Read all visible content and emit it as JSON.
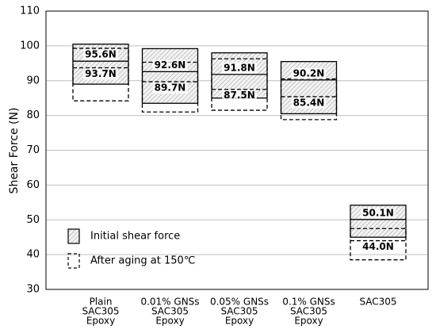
{
  "chart_data": {
    "type": "box",
    "y_label": "Shear Force (N)",
    "categories": [
      [
        "Plain",
        "SAC305",
        "Epoxy"
      ],
      [
        "0.01% GNSs",
        "SAC305",
        "Epoxy"
      ],
      [
        "0.05% GNSs",
        "SAC305",
        "Epoxy"
      ],
      [
        "0.1% GNSs",
        "SAC305",
        "Epoxy"
      ],
      [
        "SAC305"
      ]
    ],
    "ylim": [
      30,
      110
    ],
    "yticks": [
      30,
      40,
      50,
      60,
      70,
      80,
      90,
      100,
      110
    ],
    "grid": true,
    "legend": "lower left",
    "series": [
      {
        "name": "Initial shear force",
        "color": "#000000",
        "style": "hatched",
        "low": [
          89,
          83.5,
          85,
          80.5,
          45
        ],
        "values": [
          95.6,
          92.6,
          91.8,
          90.2,
          50.1
        ],
        "high": [
          100.5,
          99.2,
          98,
          95.5,
          54.2
        ],
        "value_labels": [
          "95.6N",
          "92.6N",
          "91.8N",
          "90.2N",
          "50.1N"
        ]
      },
      {
        "name": "After aging at 150℃",
        "color": "#000000",
        "style": "dashed",
        "low": [
          84.2,
          81,
          81.5,
          78.8,
          38.5
        ],
        "values": [
          93.7,
          89.7,
          87.5,
          85.4,
          44.0
        ],
        "high": [
          99.3,
          95.3,
          96.3,
          90.5,
          47.5
        ],
        "value_labels": [
          "93.7N",
          "89.7N",
          "87.5N",
          "85.4N",
          "44.0N"
        ]
      }
    ]
  }
}
